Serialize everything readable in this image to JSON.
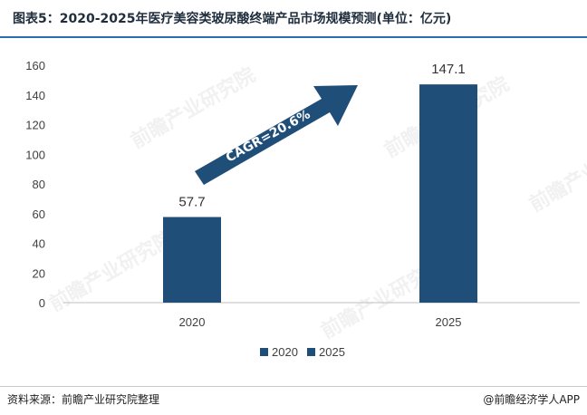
{
  "title": "图表5：2020-2025年医疗美容类玻尿酸终端产品市场规模预测(单位：亿元)",
  "source": "资料来源：前瞻产业研究院整理",
  "brand": "@前瞻经济学人APP",
  "watermark": "前瞻产业研究院",
  "colors": {
    "bar": "#1f4e79",
    "arrow": "#1f4e79",
    "grid": "#d9d9d9"
  },
  "chart_data": {
    "type": "bar",
    "categories": [
      "2020",
      "2025"
    ],
    "series": [
      {
        "name": "2020",
        "values": [
          57.7,
          null
        ]
      },
      {
        "name": "2025",
        "values": [
          null,
          147.1
        ]
      }
    ],
    "values": [
      57.7,
      147.1
    ],
    "data_labels": [
      "57.7",
      "147.1"
    ],
    "ylim": [
      0,
      160
    ],
    "yticks": [
      0,
      20,
      40,
      60,
      80,
      100,
      120,
      140,
      160
    ],
    "grid": false,
    "legend": "bottom-center",
    "annotation": "CAGR=20.6%"
  }
}
